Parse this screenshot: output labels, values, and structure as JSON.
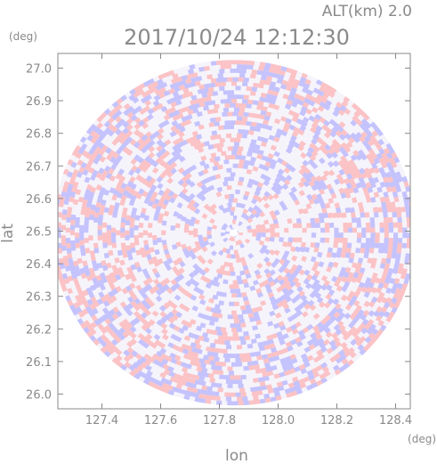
{
  "header": {
    "altitude": "ALT(km)  2.0",
    "timestamp": "2017/10/24 12:12:30"
  },
  "chart_data": {
    "type": "heatmap",
    "title": "2017/10/24 12:12:30",
    "subtitle": "ALT(km)  2.0",
    "xlabel": "lon",
    "ylabel": "lat",
    "x_unit": "(deg)",
    "y_unit": "(deg)",
    "xlim": [
      127.25,
      128.45
    ],
    "ylim": [
      25.955,
      27.045
    ],
    "x_ticks": [
      127.4,
      127.6,
      127.8,
      128.0,
      128.2,
      128.4
    ],
    "x_tick_labels": [
      "127.4",
      "127.6",
      "127.8",
      "128.0",
      "128.2",
      "128.4"
    ],
    "y_ticks": [
      26.0,
      26.1,
      26.2,
      26.3,
      26.4,
      26.5,
      26.6,
      26.7,
      26.8,
      26.9,
      27.0
    ],
    "y_tick_labels": [
      "26.0",
      "26.1",
      "26.2",
      "26.3",
      "26.4",
      "26.5",
      "26.6",
      "26.7",
      "26.8",
      "26.9",
      "27.0"
    ],
    "center": {
      "lon": 127.85,
      "lat": 26.495
    },
    "radius_deg": {
      "lon": 0.62,
      "lat": 0.53
    },
    "colors": {
      "positive": "#ff9a9a",
      "negative": "#9a9aff",
      "frame": "#888888",
      "text": "#8a8a8a"
    },
    "grid": false
  }
}
